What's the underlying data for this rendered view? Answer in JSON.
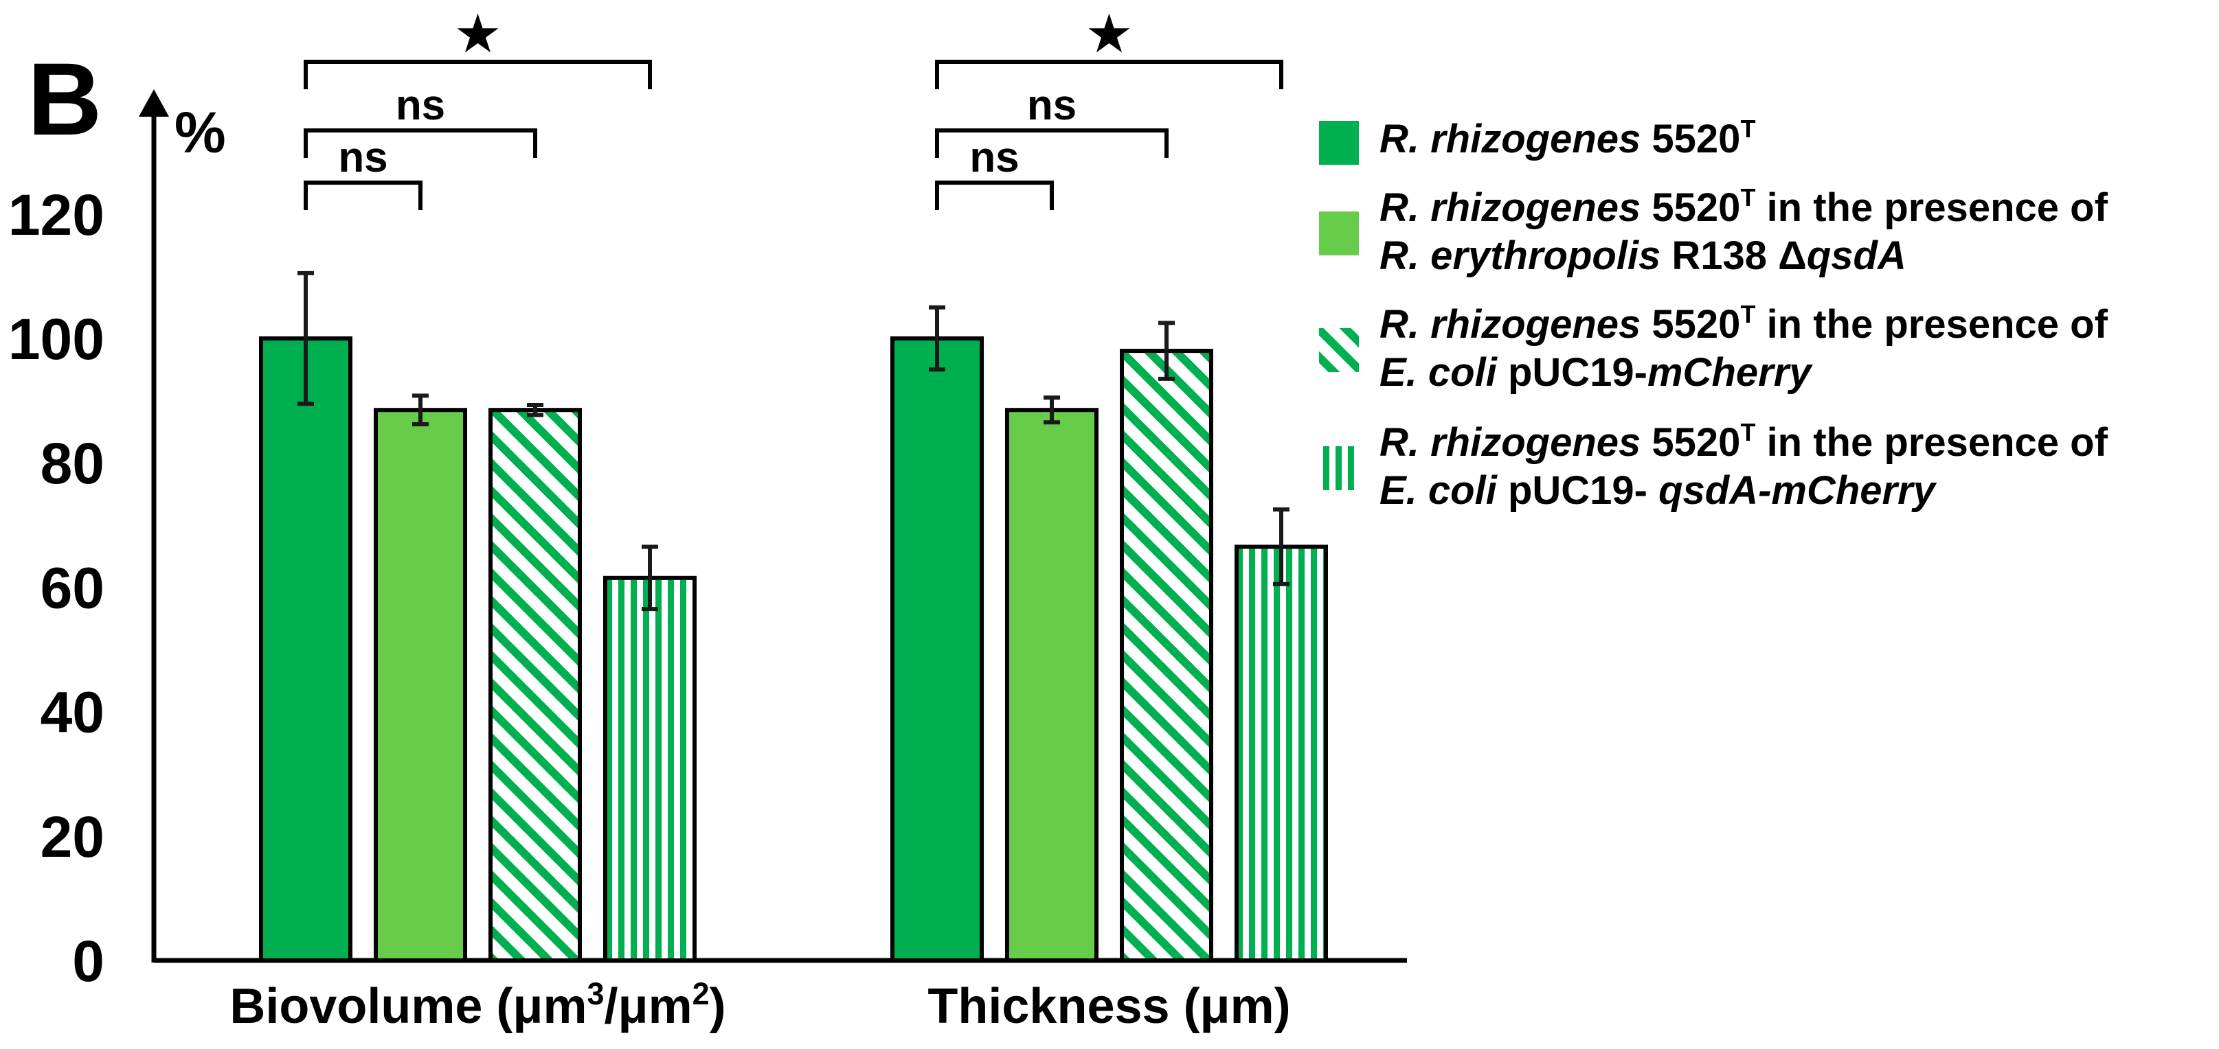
{
  "panel_label": "B",
  "chart_data": {
    "type": "bar",
    "ylabel": "%",
    "ylim": [
      0,
      140
    ],
    "yticks": [
      0,
      20,
      40,
      60,
      80,
      100,
      120
    ],
    "categories": [
      "Biovolume (μm³/μm²)",
      "Thickness (μm)"
    ],
    "category_parts": [
      [
        {
          "t": "Biovolume (μm"
        },
        {
          "t": "3",
          "sup": true
        },
        {
          "t": "/μm"
        },
        {
          "t": "2",
          "sup": true
        },
        {
          "t": ")"
        }
      ],
      [
        {
          "t": "Thickness (μm)"
        }
      ]
    ],
    "grid": false,
    "legend_position": "right",
    "series": [
      {
        "name": "R. rhizogenes 5520T",
        "name_parts": [
          [
            {
              "t": "R. rhizogenes",
              "i": true
            },
            {
              "t": " 5520"
            },
            {
              "t": "T",
              "sup": true
            }
          ]
        ],
        "fill": "solid-dark",
        "color": "#00b050",
        "values": [
          100,
          100
        ],
        "errors": [
          10.5,
          5
        ]
      },
      {
        "name": "R. rhizogenes 5520T in the presence of R. erythropolis R138 ΔqsdA",
        "name_parts": [
          [
            {
              "t": "R. rhizogenes",
              "i": true
            },
            {
              "t": " 5520"
            },
            {
              "t": "T",
              "sup": true
            },
            {
              "t": " in the presence of"
            }
          ],
          [
            {
              "t": "R. erythropolis",
              "i": true
            },
            {
              "t": " R138 Δ"
            },
            {
              "t": "qsdA",
              "i": true
            }
          ]
        ],
        "fill": "solid-light",
        "color": "#66cc4a",
        "values": [
          88.5,
          88.5
        ],
        "errors": [
          2.3,
          2
        ]
      },
      {
        "name": "R. rhizogenes 5520T in the presence of E. coli pUC19-mCherry",
        "name_parts": [
          [
            {
              "t": "R. rhizogenes",
              "i": true
            },
            {
              "t": " 5520"
            },
            {
              "t": "T",
              "sup": true
            },
            {
              "t": " in the presence of"
            }
          ],
          [
            {
              "t": "E. coli",
              "i": true
            },
            {
              "t": " pUC19-"
            },
            {
              "t": "mCherry",
              "i": true
            }
          ]
        ],
        "fill": "diagonal",
        "color": "#00b050",
        "values": [
          88.5,
          98
        ],
        "errors": [
          0.8,
          4.5
        ]
      },
      {
        "name": "R. rhizogenes 5520T in the presence of E. coli pUC19- qsdA-mCherry",
        "name_parts": [
          [
            {
              "t": "R. rhizogenes",
              "i": true
            },
            {
              "t": " 5520"
            },
            {
              "t": "T",
              "sup": true
            },
            {
              "t": " in the presence of"
            }
          ],
          [
            {
              "t": "E. coli",
              "i": true
            },
            {
              "t": " pUC19- "
            },
            {
              "t": "qsdA-mCherry",
              "i": true
            }
          ]
        ],
        "fill": "vertical",
        "color": "#00b050",
        "values": [
          61.5,
          66.5
        ],
        "errors": [
          5,
          6
        ]
      }
    ],
    "significance": [
      {
        "category": 0,
        "from_bar": 0,
        "to_bar": 1,
        "label": "ns"
      },
      {
        "category": 0,
        "from_bar": 0,
        "to_bar": 2,
        "label": "ns"
      },
      {
        "category": 0,
        "from_bar": 0,
        "to_bar": 3,
        "label": "★"
      },
      {
        "category": 1,
        "from_bar": 0,
        "to_bar": 1,
        "label": "ns"
      },
      {
        "category": 1,
        "from_bar": 0,
        "to_bar": 2,
        "label": "ns"
      },
      {
        "category": 1,
        "from_bar": 0,
        "to_bar": 3,
        "label": "★"
      }
    ]
  }
}
